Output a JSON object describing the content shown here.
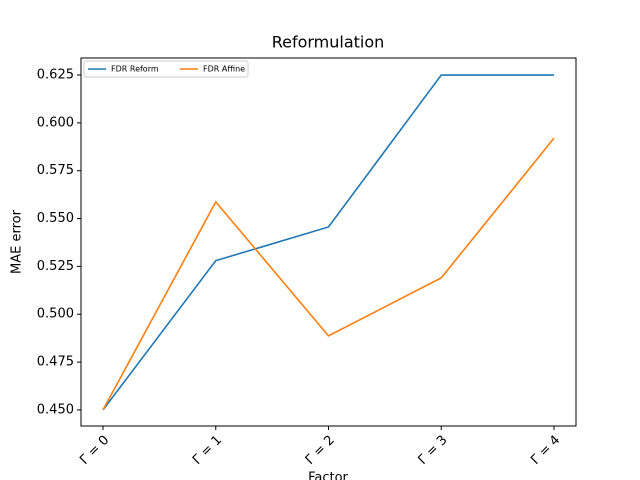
{
  "chart_data": {
    "type": "line",
    "title": "Reformulation",
    "x_label": "Factor",
    "y_label": "MAE error",
    "categories": [
      "Γ = 0",
      "Γ = 1",
      "Γ = 2",
      "Γ = 3",
      "Γ = 4"
    ],
    "series": [
      {
        "name": "FDR Reform",
        "color": "#1f77b4",
        "values": [
          0.45,
          0.528,
          0.5456,
          0.625,
          0.625
        ]
      },
      {
        "name": "FDR Affine",
        "color": "#ff7f0e",
        "values": [
          0.45,
          0.5587,
          0.4887,
          0.519,
          0.592
        ]
      }
    ],
    "ylim": [
      0.4416,
      0.6339
    ],
    "yticks": [
      {
        "value": 0.45,
        "label": "0.450"
      },
      {
        "value": 0.475,
        "label": "0.475"
      },
      {
        "value": 0.5,
        "label": "0.500"
      },
      {
        "value": 0.525,
        "label": "0.525"
      },
      {
        "value": 0.55,
        "label": "0.550"
      },
      {
        "value": 0.575,
        "label": "0.575"
      },
      {
        "value": 0.6,
        "label": "0.600"
      },
      {
        "value": 0.625,
        "label": "0.625"
      }
    ],
    "legend": "upper left"
  }
}
